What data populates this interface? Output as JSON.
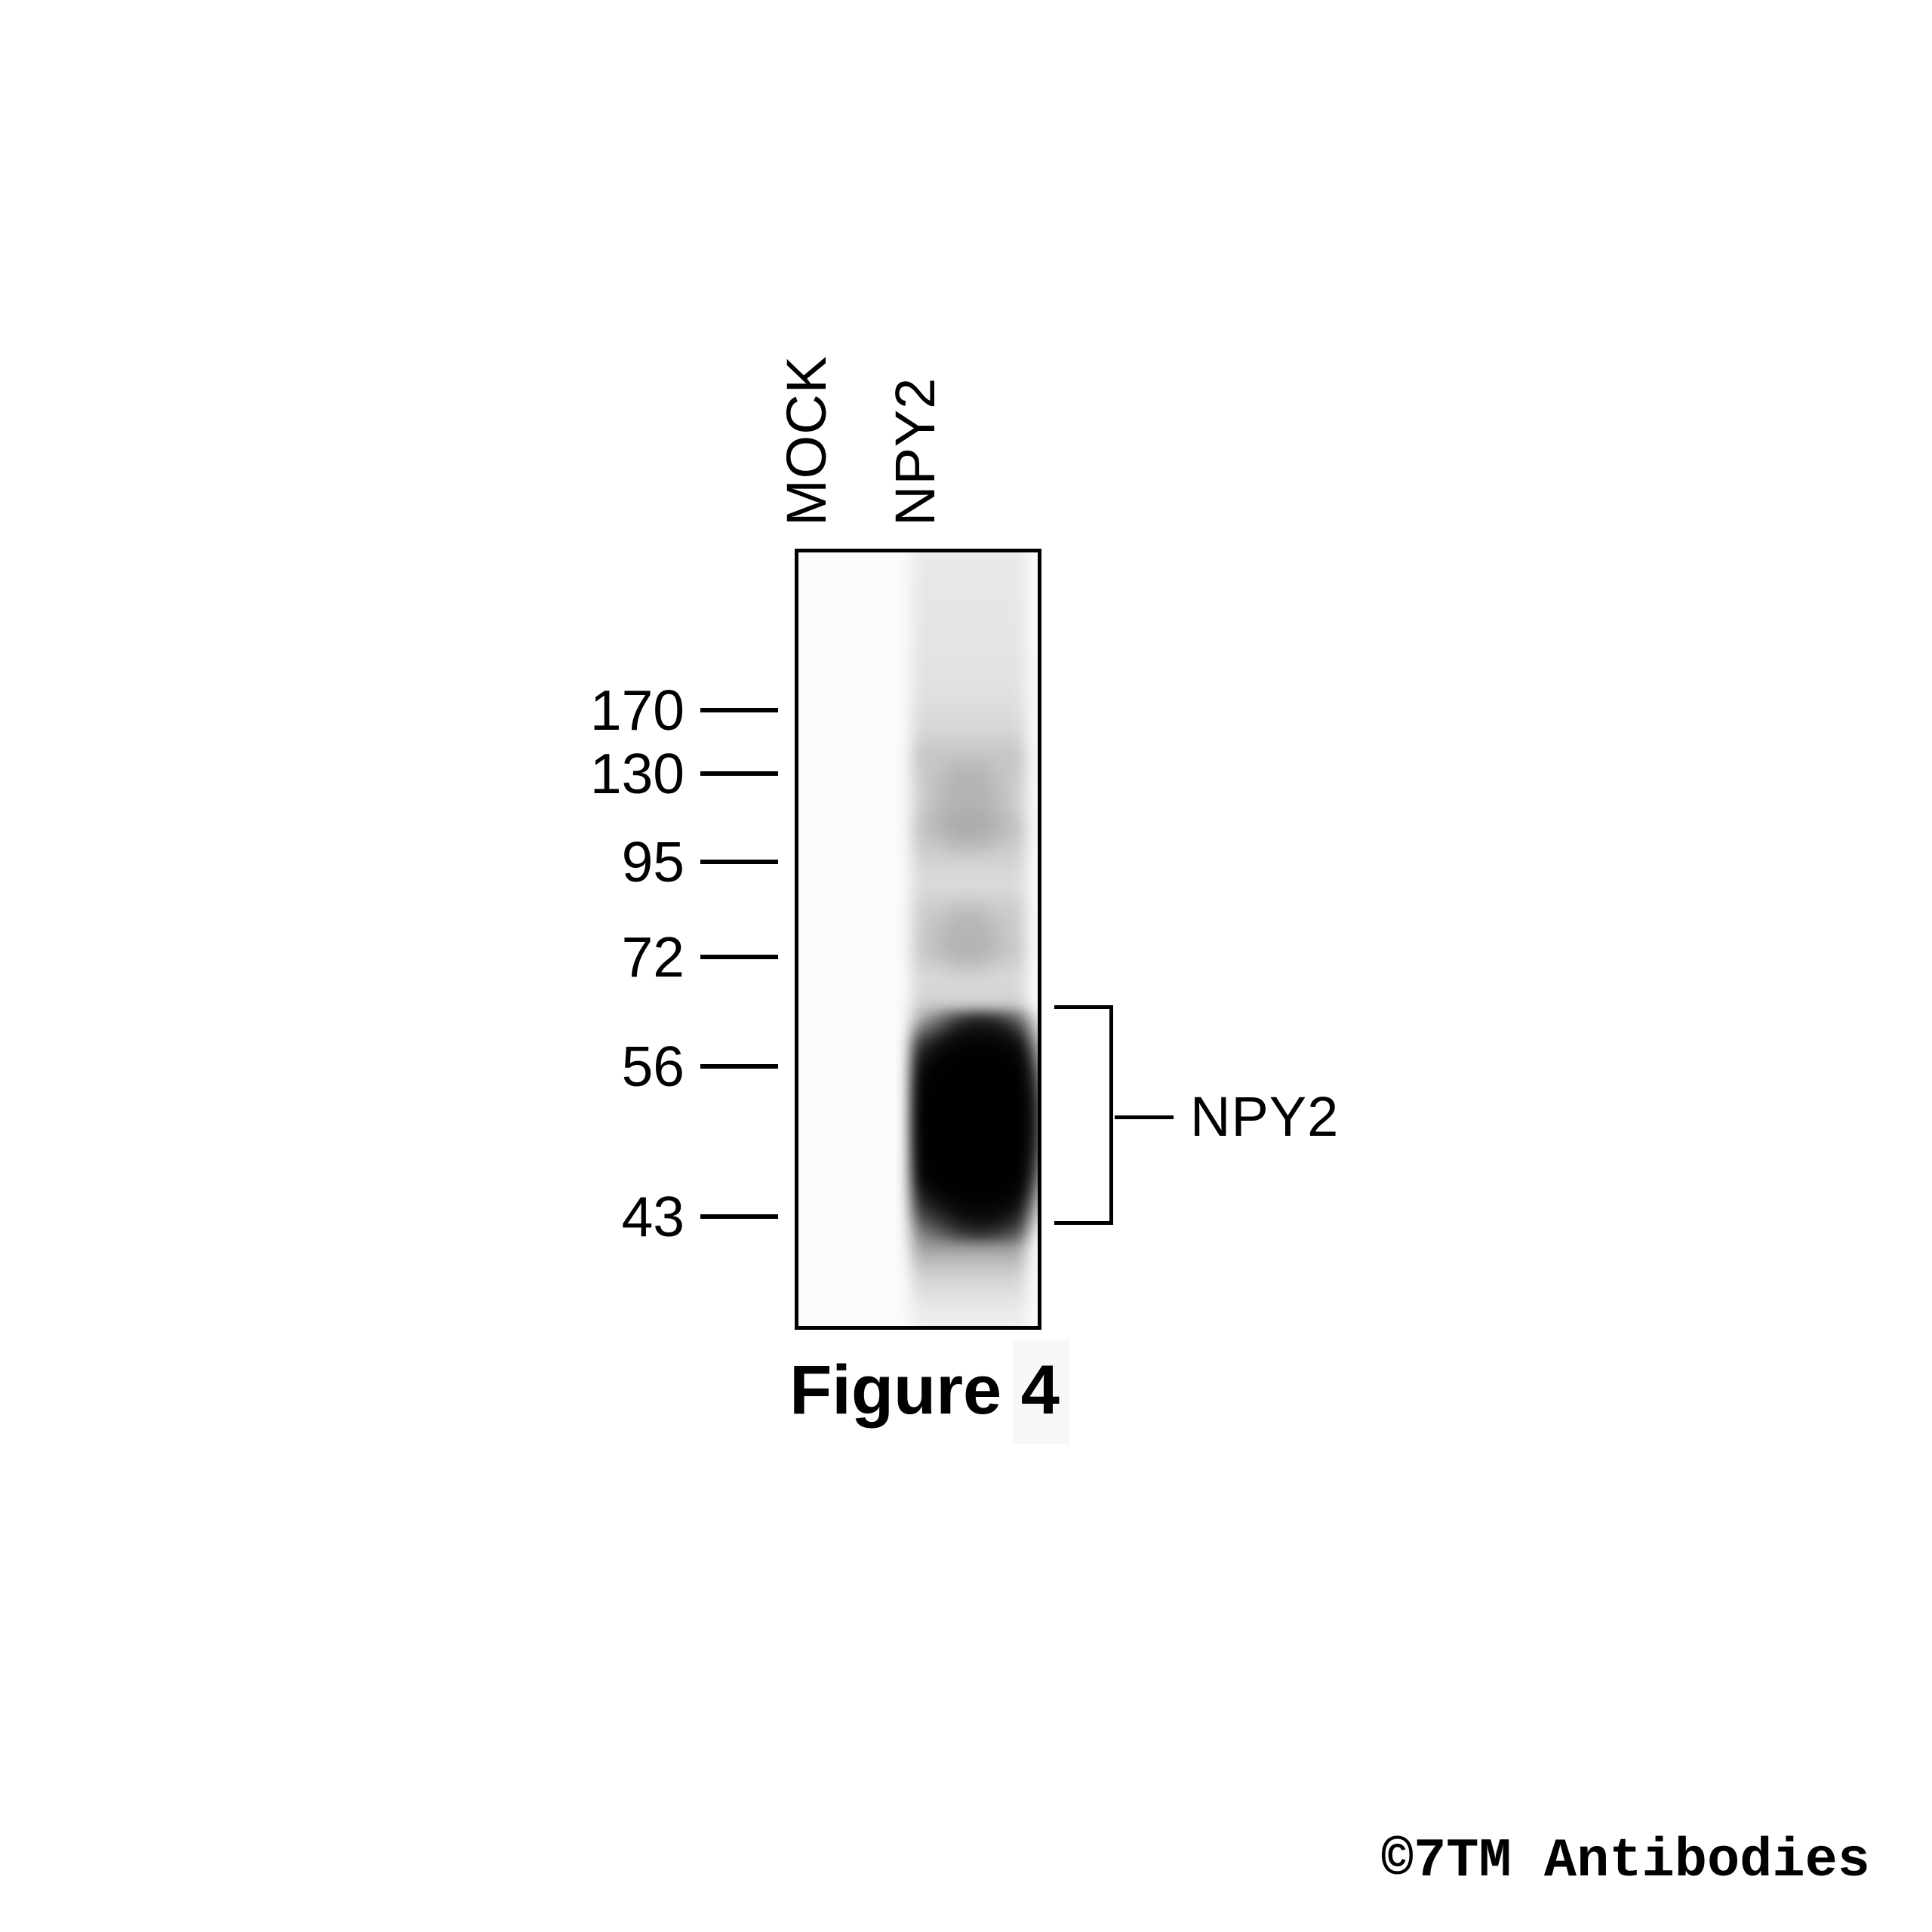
{
  "figure": {
    "type": "western-blot",
    "caption": "Figure 4",
    "watermark": "©7TM Antibodies"
  },
  "blot": {
    "lane_labels": [
      "MOCK",
      "NPY2"
    ],
    "mw_unit": "kDa",
    "mw_markers": [
      {
        "label": "170"
      },
      {
        "label": "130"
      },
      {
        "label": "95"
      },
      {
        "label": "72"
      },
      {
        "label": "56"
      },
      {
        "label": "43"
      }
    ],
    "annotation": {
      "label": "NPY2",
      "bracket_span_kda": [
        43,
        62
      ]
    },
    "bands": [
      {
        "lane": "NPY2",
        "approx_kda": "46-60",
        "intensity": "strong"
      },
      {
        "lane": "NPY2",
        "approx_kda": "96-133",
        "intensity": "faint"
      },
      {
        "lane": "NPY2",
        "approx_kda": "70-85",
        "intensity": "faint"
      },
      {
        "lane": "MOCK",
        "approx_kda": "",
        "intensity": "none"
      }
    ]
  }
}
